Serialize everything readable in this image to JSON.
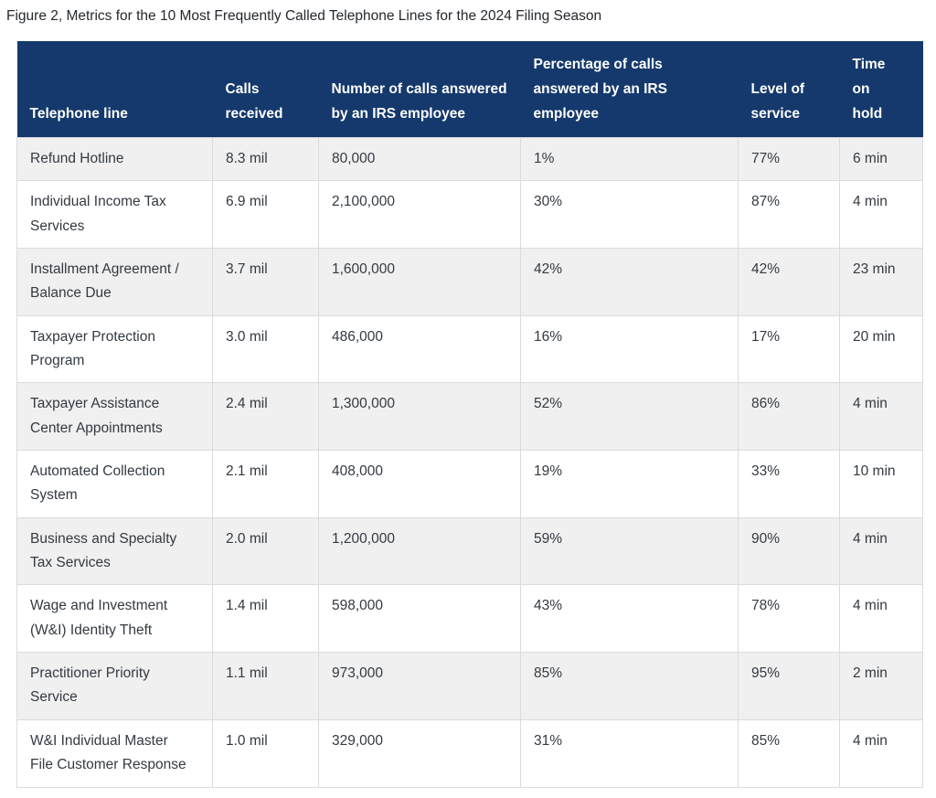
{
  "figure": {
    "title": "Figure 2, Metrics for the 10 Most Frequently Called Telephone Lines for the 2024 Filing Season"
  },
  "colors": {
    "header_bg": "#15396c",
    "header_text": "#ffffff",
    "row_stripe": "#f0f0f0",
    "row_white": "#ffffff",
    "grid_border": "#d9dbdd",
    "body_text": "#333a42"
  },
  "chart_data": {
    "type": "table",
    "title": "Figure 2, Metrics for the 10 Most Frequently Called Telephone Lines for the 2024 Filing Season",
    "columns": [
      "Telephone line",
      "Calls received",
      "Number of calls answered by an IRS employee",
      "Percentage of calls answered by an IRS employee",
      "Level of service",
      "Time on hold"
    ],
    "rows": [
      [
        "Refund Hotline",
        "8.3 mil",
        "80,000",
        "1%",
        "77%",
        "6 min"
      ],
      [
        "Individual Income Tax Services",
        "6.9 mil",
        "2,100,000",
        "30%",
        "87%",
        "4 min"
      ],
      [
        "Installment Agreement / Balance Due",
        "3.7 mil",
        "1,600,000",
        "42%",
        "42%",
        "23 min"
      ],
      [
        "Taxpayer Protection Program",
        "3.0 mil",
        "486,000",
        "16%",
        "17%",
        "20 min"
      ],
      [
        "Taxpayer Assistance Center Appointments",
        "2.4 mil",
        "1,300,000",
        "52%",
        "86%",
        "4 min"
      ],
      [
        "Automated Collection System",
        "2.1 mil",
        "408,000",
        "19%",
        "33%",
        "10 min"
      ],
      [
        "Business and Specialty Tax Services",
        "2.0 mil",
        "1,200,000",
        "59%",
        "90%",
        "4 min"
      ],
      [
        "Wage and Investment (W&I) Identity Theft",
        "1.4 mil",
        "598,000",
        "43%",
        "78%",
        "4 min"
      ],
      [
        "Practitioner Priority Service",
        "1.1 mil",
        "973,000",
        "85%",
        "95%",
        "2 min"
      ],
      [
        "W&I Individual Master File Customer Response",
        "1.0 mil",
        "329,000",
        "31%",
        "85%",
        "4 min"
      ]
    ]
  }
}
